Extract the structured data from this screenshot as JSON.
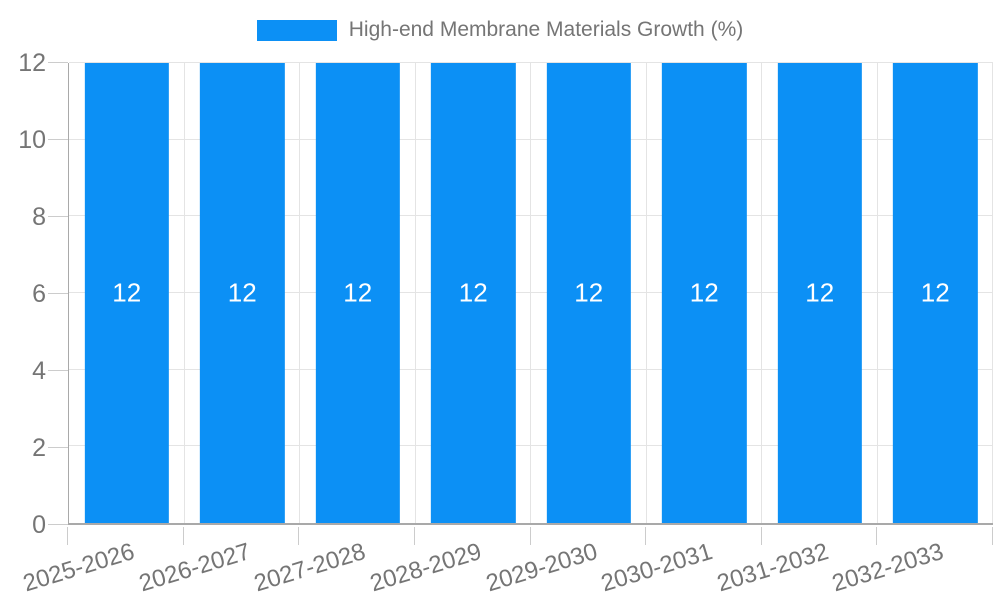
{
  "legend": {
    "label": "High-end Membrane Materials Growth (%)"
  },
  "chart_data": {
    "type": "bar",
    "title": "High-end Membrane Materials Growth (%)",
    "categories": [
      "2025-2026",
      "2026-2027",
      "2027-2028",
      "2028-2029",
      "2029-2030",
      "2030-2031",
      "2031-2032",
      "2032-2033"
    ],
    "values": [
      12,
      12,
      12,
      12,
      12,
      12,
      12,
      12
    ],
    "bar_value_labels": [
      "12",
      "12",
      "12",
      "12",
      "12",
      "12",
      "12",
      "12"
    ],
    "xlabel": "",
    "ylabel": "",
    "ylim": [
      0,
      12
    ],
    "yticks": [
      0,
      2,
      4,
      6,
      8,
      10,
      12
    ],
    "grid": true,
    "legend_position": "top",
    "x_label_rotation_deg": -17,
    "colors": {
      "bar": "#0c90f5",
      "bar_label_text": "#ffffff",
      "axis_text": "#757575",
      "legend_text": "#757575",
      "gridline": "#e4e4e4",
      "axis_line": "#a9a9a9",
      "tick_mark": "#cccccc",
      "background": "#ffffff"
    }
  }
}
